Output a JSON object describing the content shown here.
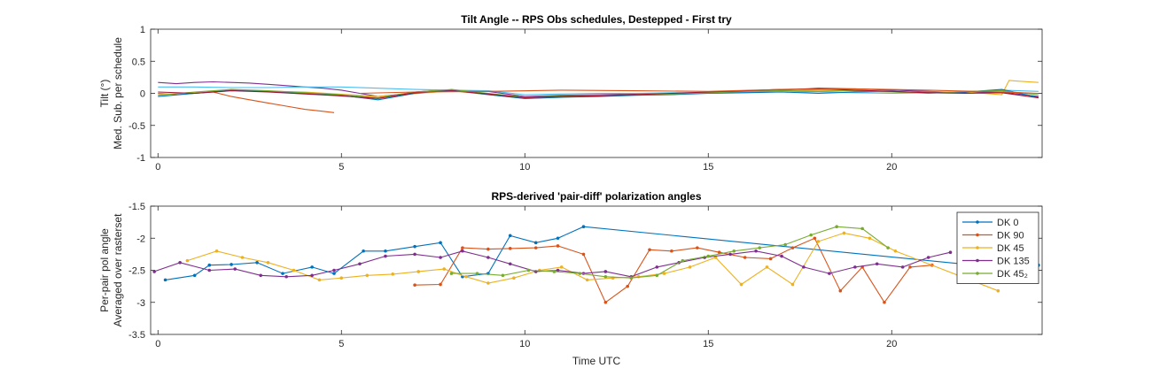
{
  "chart_data": [
    {
      "type": "line",
      "title": "Tilt Angle -- RPS Obs schedules, Destepped - First try",
      "ylabel_lines": [
        "Tilt (°)",
        "Med. Sub. per schedule"
      ],
      "xlabel": "",
      "xlim": [
        -0.2,
        24.1
      ],
      "ylim": [
        -1,
        1
      ],
      "xticks": [
        0,
        5,
        10,
        15,
        20
      ],
      "yticks": [
        -1,
        -0.5,
        0,
        0.5,
        1
      ],
      "xtick_labels": [
        "0",
        "5",
        "10",
        "15",
        "20"
      ],
      "ytick_labels": [
        "-1",
        "-0.5",
        "0",
        "0.5",
        "1"
      ],
      "grid": false,
      "series": [
        {
          "color": "#7E2F8E",
          "x": [
            0,
            0.5,
            1,
            1.5,
            2,
            2.5,
            3,
            3.5,
            4,
            4.5,
            5,
            5.5,
            6,
            6.5,
            7,
            7.5,
            8,
            9,
            10,
            11,
            12,
            13,
            14,
            15,
            16,
            17,
            18,
            19,
            20,
            21,
            22,
            23,
            24
          ],
          "y": [
            0.17,
            0.15,
            0.17,
            0.18,
            0.17,
            0.16,
            0.14,
            0.12,
            0.1,
            0.08,
            0.05,
            0.0,
            -0.05,
            -0.02,
            0.02,
            0.04,
            0.05,
            0.03,
            -0.05,
            -0.03,
            -0.02,
            -0.01,
            0.0,
            0.01,
            0.02,
            0.05,
            0.08,
            0.07,
            0.05,
            0.03,
            0.01,
            0.02,
            -0.05
          ]
        },
        {
          "color": "#D95319",
          "x": [
            0,
            0.5,
            1,
            1.5,
            2,
            2.5,
            3,
            3.5,
            4,
            4.5,
            4.8
          ],
          "y": [
            0.0,
            -0.02,
            0.0,
            0.02,
            -0.05,
            -0.1,
            -0.15,
            -0.2,
            -0.25,
            -0.28,
            -0.3
          ]
        },
        {
          "color": "#4DBEEE",
          "x": [
            0,
            1,
            2,
            3,
            4,
            5,
            6,
            7,
            8,
            9,
            10,
            11,
            12,
            13,
            14,
            15,
            16,
            17,
            18,
            19,
            20,
            21,
            22,
            23,
            24
          ],
          "y": [
            0.1,
            0.1,
            0.09,
            0.09,
            0.1,
            0.1,
            0.08,
            0.06,
            0.05,
            0.04,
            -0.02,
            -0.01,
            0.0,
            0.0,
            0.01,
            0.01,
            0.02,
            0.02,
            0.02,
            0.01,
            0.0,
            0.01,
            0.02,
            0.05,
            0.03
          ]
        },
        {
          "color": "#EDB120",
          "x": [
            0,
            2,
            4,
            6,
            8,
            10,
            12,
            14,
            16,
            18,
            20,
            22,
            23,
            23.2,
            24
          ],
          "y": [
            -0.02,
            0.05,
            0.02,
            -0.05,
            0.04,
            -0.08,
            -0.04,
            0.0,
            0.03,
            0.05,
            0.02,
            0.02,
            -0.02,
            0.2,
            0.17
          ]
        },
        {
          "color": "#0072BD",
          "x": [
            0,
            1,
            2,
            3,
            4,
            5,
            6,
            7,
            8,
            9,
            10,
            11,
            12,
            13,
            14,
            15,
            16,
            17,
            18,
            19,
            20,
            21,
            22,
            23,
            24
          ],
          "y": [
            -0.05,
            0.0,
            0.05,
            0.03,
            0.0,
            -0.03,
            -0.1,
            0.0,
            0.05,
            -0.02,
            -0.08,
            -0.06,
            -0.05,
            -0.03,
            -0.02,
            0.0,
            0.01,
            0.02,
            0.0,
            0.02,
            0.03,
            0.01,
            0.02,
            0.06,
            -0.06
          ]
        },
        {
          "color": "#77AC30",
          "x": [
            0,
            1,
            2,
            3,
            4,
            5,
            6,
            7,
            8,
            9,
            10,
            11,
            12,
            13,
            14,
            15,
            16,
            17,
            18,
            19,
            20,
            21,
            22,
            23,
            24
          ],
          "y": [
            -0.03,
            0.02,
            0.06,
            0.04,
            0.01,
            -0.02,
            -0.07,
            0.02,
            0.06,
            0.0,
            -0.06,
            -0.04,
            -0.03,
            -0.02,
            -0.01,
            0.01,
            0.03,
            0.04,
            0.03,
            0.04,
            0.02,
            0.0,
            0.03,
            0.04,
            -0.02
          ]
        },
        {
          "color": "#A2142F",
          "x": [
            0,
            1,
            2,
            3,
            4,
            5,
            6,
            7,
            8,
            9,
            10,
            11,
            12,
            13,
            14,
            15,
            16,
            17,
            18,
            19,
            20,
            21,
            22,
            23,
            24
          ],
          "y": [
            0.02,
            0.0,
            0.04,
            0.02,
            -0.01,
            -0.04,
            -0.08,
            0.01,
            0.04,
            -0.01,
            -0.07,
            -0.05,
            -0.04,
            -0.02,
            0.0,
            0.02,
            0.04,
            0.06,
            0.07,
            0.05,
            0.03,
            0.01,
            0.0,
            0.01,
            -0.07
          ]
        },
        {
          "color": "#D95319",
          "x": [
            5.5,
            7,
            9,
            11,
            13,
            15,
            17,
            19,
            21,
            23,
            24
          ],
          "y": [
            0.0,
            0.02,
            0.03,
            0.05,
            0.04,
            0.03,
            0.06,
            0.07,
            0.05,
            0.02,
            0.0
          ]
        }
      ]
    },
    {
      "type": "line",
      "title": "RPS-derived 'pair-diff' polarization angles",
      "ylabel_lines": [
        "Per-pair pol angle",
        "Averaged over rasterset"
      ],
      "xlabel": "Time UTC",
      "xlim": [
        -0.2,
        24.1
      ],
      "ylim": [
        -3.5,
        -1.5
      ],
      "xticks": [
        0,
        5,
        10,
        15,
        20
      ],
      "yticks": [
        -3.5,
        -3,
        -2.5,
        -2,
        -1.5
      ],
      "xtick_labels": [
        "0",
        "5",
        "10",
        "15",
        "20"
      ],
      "ytick_labels": [
        "-3.5",
        "-3",
        "-2.5",
        "-2",
        "-1.5"
      ],
      "grid": false,
      "legend": "top-right",
      "series": [
        {
          "name": "DK 0",
          "color": "#0072BD",
          "x": [
            0.2,
            1.0,
            1.4,
            2.0,
            2.7,
            3.4,
            4.2,
            4.8,
            5.6,
            6.2,
            7.0,
            7.7,
            8.3,
            9.0,
            9.6,
            10.3,
            10.9,
            11.6,
            22.8,
            23.5,
            24.0
          ],
          "y": [
            -2.65,
            -2.58,
            -2.42,
            -2.41,
            -2.38,
            -2.55,
            -2.45,
            -2.55,
            -2.2,
            -2.2,
            -2.13,
            -2.07,
            -2.6,
            -2.55,
            -1.96,
            -2.07,
            -2.0,
            -1.82,
            -2.45,
            -2.35,
            -2.42
          ]
        },
        {
          "name": "DK 90",
          "color": "#D95319",
          "x": [
            7.0,
            7.7,
            8.3,
            9.0,
            9.6,
            10.3,
            10.9,
            11.6,
            12.2,
            12.8,
            13.4,
            14.0,
            14.7,
            15.3,
            16.0,
            16.7,
            17.3,
            17.9,
            18.6,
            19.2,
            19.8,
            20.5,
            21.1
          ],
          "y": [
            -2.73,
            -2.72,
            -2.15,
            -2.17,
            -2.16,
            -2.15,
            -2.12,
            -2.25,
            -3.0,
            -2.75,
            -2.18,
            -2.2,
            -2.15,
            -2.22,
            -2.3,
            -2.32,
            -2.15,
            -2.0,
            -2.82,
            -2.45,
            -3.0,
            -2.45,
            -2.42
          ]
        },
        {
          "name": "DK 45",
          "color": "#EDB120",
          "x": [
            0.8,
            1.6,
            2.3,
            3.0,
            3.7,
            4.4,
            5.0,
            5.7,
            6.4,
            7.1,
            7.8,
            8.4,
            9.0,
            9.7,
            10.4,
            11.0,
            11.7,
            12.4,
            13.1,
            13.8,
            14.5,
            15.2,
            15.9,
            16.6,
            17.3,
            18.0,
            18.7,
            19.4,
            20.1,
            22.9
          ],
          "y": [
            -2.35,
            -2.2,
            -2.3,
            -2.38,
            -2.5,
            -2.65,
            -2.62,
            -2.58,
            -2.56,
            -2.52,
            -2.48,
            -2.6,
            -2.7,
            -2.62,
            -2.5,
            -2.45,
            -2.65,
            -2.62,
            -2.6,
            -2.55,
            -2.45,
            -2.3,
            -2.72,
            -2.45,
            -2.72,
            -2.05,
            -1.92,
            -2.0,
            -2.2,
            -2.82
          ]
        },
        {
          "name": "DK 135",
          "color": "#7E2F8E",
          "x": [
            -0.1,
            0.6,
            1.4,
            2.1,
            2.8,
            3.5,
            4.2,
            4.8,
            5.5,
            6.2,
            7.0,
            7.7,
            8.3,
            9.0,
            9.6,
            10.3,
            10.9,
            11.6,
            12.2,
            12.9,
            13.6,
            14.2,
            14.9,
            15.6,
            16.3,
            17.0,
            17.6,
            18.3,
            19.0,
            19.6,
            20.3,
            21.0,
            21.6
          ],
          "y": [
            -2.52,
            -2.38,
            -2.5,
            -2.48,
            -2.58,
            -2.6,
            -2.58,
            -2.5,
            -2.4,
            -2.28,
            -2.25,
            -2.3,
            -2.2,
            -2.3,
            -2.4,
            -2.52,
            -2.5,
            -2.55,
            -2.52,
            -2.6,
            -2.45,
            -2.38,
            -2.3,
            -2.25,
            -2.2,
            -2.28,
            -2.45,
            -2.55,
            -2.45,
            -2.4,
            -2.45,
            -2.3,
            -2.22
          ]
        },
        {
          "name": "DK 45₂",
          "color": "#77AC30",
          "x": [
            8.0,
            8.7,
            9.4,
            10.1,
            10.8,
            11.5,
            12.2,
            12.9,
            13.6,
            14.3,
            15.0,
            15.7,
            16.4,
            17.1,
            17.8,
            18.5,
            19.2,
            19.9
          ],
          "y": [
            -2.55,
            -2.55,
            -2.58,
            -2.5,
            -2.52,
            -2.55,
            -2.6,
            -2.62,
            -2.58,
            -2.35,
            -2.28,
            -2.2,
            -2.15,
            -2.1,
            -1.95,
            -1.82,
            -1.85,
            -2.15
          ]
        }
      ]
    }
  ]
}
